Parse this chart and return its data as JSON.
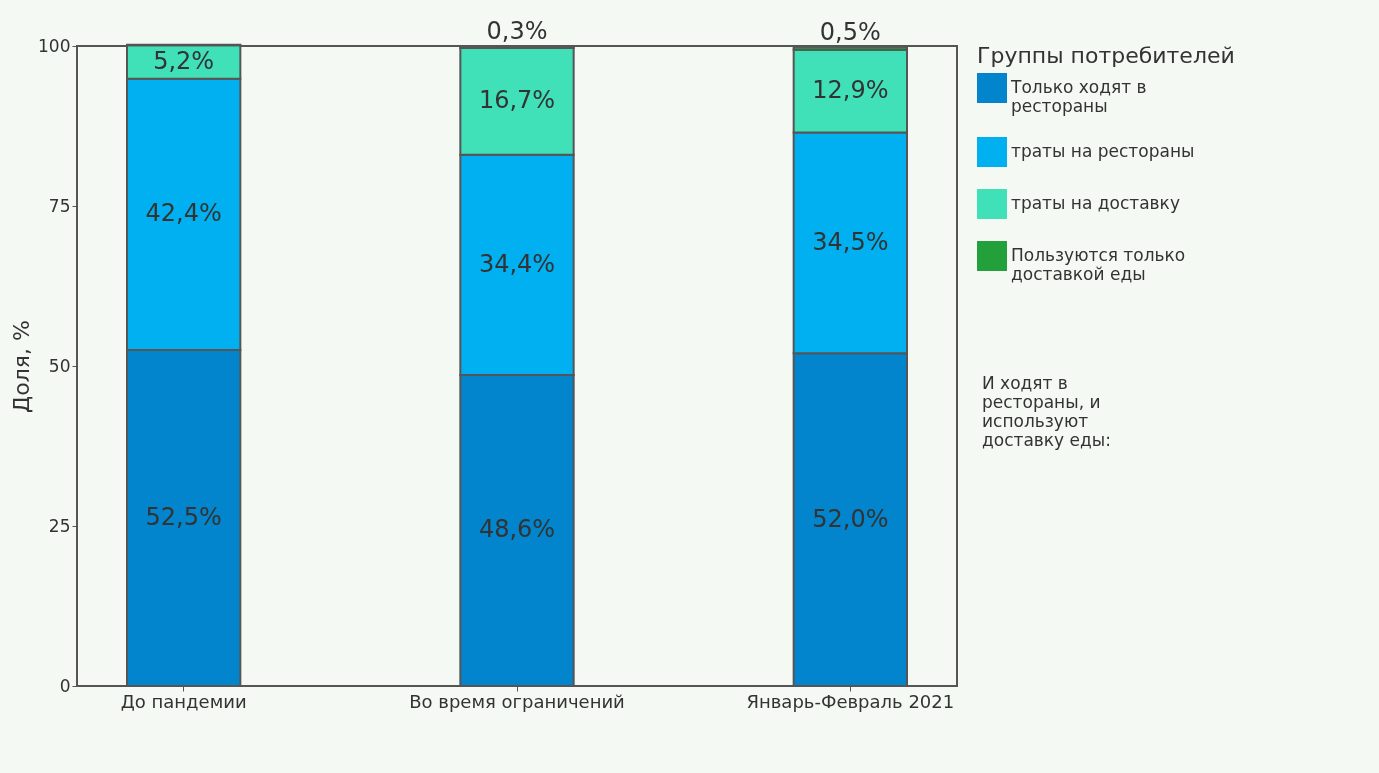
{
  "chart_data": {
    "type": "bar",
    "stacked": true,
    "categories": [
      "До пандемии",
      "Во время ограничений",
      "Январь-Февраль 2021"
    ],
    "series": [
      {
        "name": "Только ходят в рестораны",
        "color": "#0285cc",
        "values": [
          52.5,
          48.6,
          52.0
        ],
        "value_labels": [
          "52,5%",
          "48,6%",
          "52,0%"
        ]
      },
      {
        "name": "траты на рестораны",
        "color": "#00b0f0",
        "values": [
          42.4,
          34.4,
          34.5
        ],
        "value_labels": [
          "42,4%",
          "34,4%",
          "34,5%"
        ]
      },
      {
        "name": "траты на доставку",
        "color": "#40e0b8",
        "values": [
          5.2,
          16.7,
          12.9
        ],
        "value_labels": [
          "5,2%",
          "16,7%",
          "12,9%"
        ]
      },
      {
        "name": "Пользуются только доставкой еды",
        "color": "#23a03a",
        "values": [
          0.1,
          0.3,
          0.5
        ],
        "value_labels": [
          null,
          "0,3%",
          "0,5%"
        ]
      }
    ],
    "ylabel": "Доля, %",
    "ylim": [
      0,
      100
    ],
    "yticks": [
      0,
      25,
      50,
      75,
      100
    ],
    "grid": false,
    "legend": "right",
    "legend_title": "Группы потребителей",
    "annotations": [
      "И ходят в рестораны, и используют доставку еды:"
    ]
  }
}
